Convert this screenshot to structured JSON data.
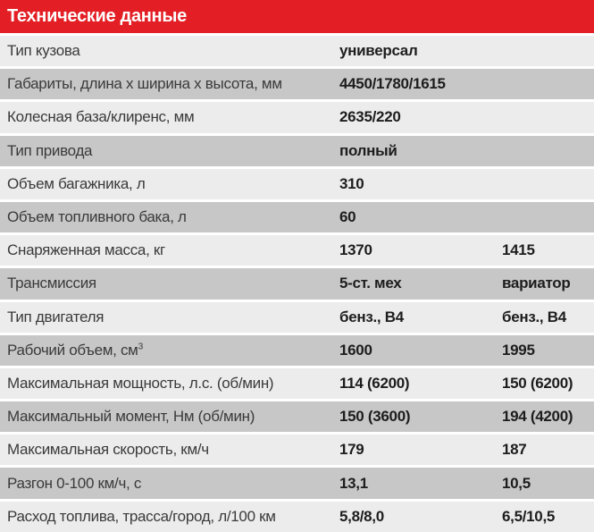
{
  "title": "Технические данные",
  "colors": {
    "header_bg": "#e31e24",
    "title_text": "#ffffff",
    "row_light": "#ececec",
    "row_dark": "#c7c7c7",
    "label_text": "#3a3a3a",
    "value_text": "#1d1d1d"
  },
  "rows": [
    {
      "label": "Тип кузова",
      "value1": "универсал",
      "value2": ""
    },
    {
      "label": "Габариты, длина х ширина х высота, мм",
      "value1": "4450/1780/1615",
      "value2": ""
    },
    {
      "label": "Колесная база/клиренс, мм",
      "value1": "2635/220",
      "value2": ""
    },
    {
      "label": "Тип привода",
      "value1": "полный",
      "value2": ""
    },
    {
      "label": "Объем багажника, л",
      "value1": "310",
      "value2": ""
    },
    {
      "label": "Объем топливного бака, л",
      "value1": "60",
      "value2": ""
    },
    {
      "label": "Снаряженная масса, кг",
      "value1": "1370",
      "value2": "1415"
    },
    {
      "label": "Трансмиссия",
      "value1": "5-ст. мех",
      "value2": "вариатор"
    },
    {
      "label": "Тип двигателя",
      "value1": "бенз., В4",
      "value2": "бенз., В4"
    },
    {
      "label": "Рабочий объем, см",
      "label_sup": "3",
      "value1": "1600",
      "value2": "1995"
    },
    {
      "label": "Максимальная мощность, л.с. (об/мин)",
      "value1": "114 (6200)",
      "value2": "150 (6200)"
    },
    {
      "label": "Максимальный момент, Нм (об/мин)",
      "value1": "150 (3600)",
      "value2": "194 (4200)"
    },
    {
      "label": "Максимальная скорость, км/ч",
      "value1": "179",
      "value2": "187"
    },
    {
      "label": "Разгон 0-100 км/ч, с",
      "value1": "13,1",
      "value2": "10,5"
    },
    {
      "label": "Расход топлива, трасса/город, л/100 км",
      "value1": "5,8/8,0",
      "value2": "6,5/10,5"
    }
  ]
}
